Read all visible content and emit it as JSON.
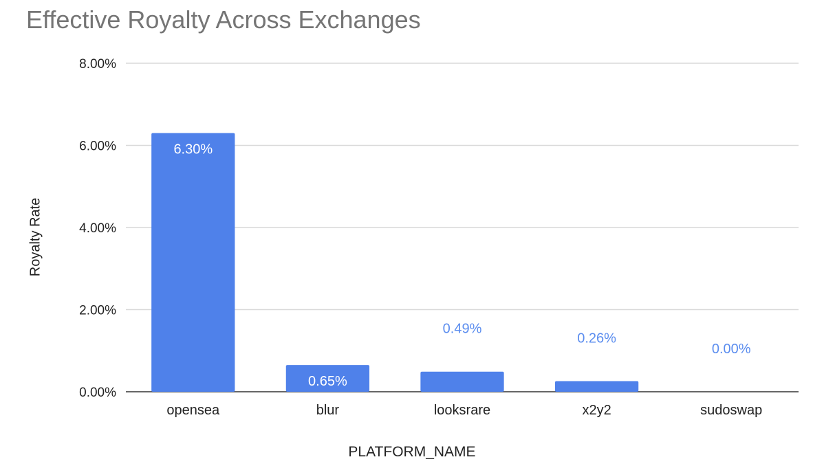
{
  "chart_data": {
    "type": "bar",
    "title": "Effective Royalty Across Exchanges",
    "xlabel": "PLATFORM_NAME",
    "ylabel": "Royalty Rate",
    "categories": [
      "opensea",
      "blur",
      "looksrare",
      "x2y2",
      "sudoswap"
    ],
    "values": [
      6.3,
      0.65,
      0.49,
      0.26,
      0.0
    ],
    "data_labels": [
      "6.30%",
      "0.65%",
      "0.49%",
      "0.26%",
      "0.00%"
    ],
    "ylim": [
      0,
      8
    ],
    "yticks": [
      0,
      2,
      4,
      6,
      8
    ],
    "ytick_labels": [
      "0.00%",
      "2.00%",
      "4.00%",
      "6.00%",
      "8.00%"
    ],
    "grid": true,
    "legend": "none",
    "colors": {
      "bar": "#4f81ea",
      "label_inside": "#ffffff",
      "label_outside": "#5b8def",
      "grid": "#d9d9d9",
      "axis": "#333333",
      "title": "#757575"
    }
  }
}
